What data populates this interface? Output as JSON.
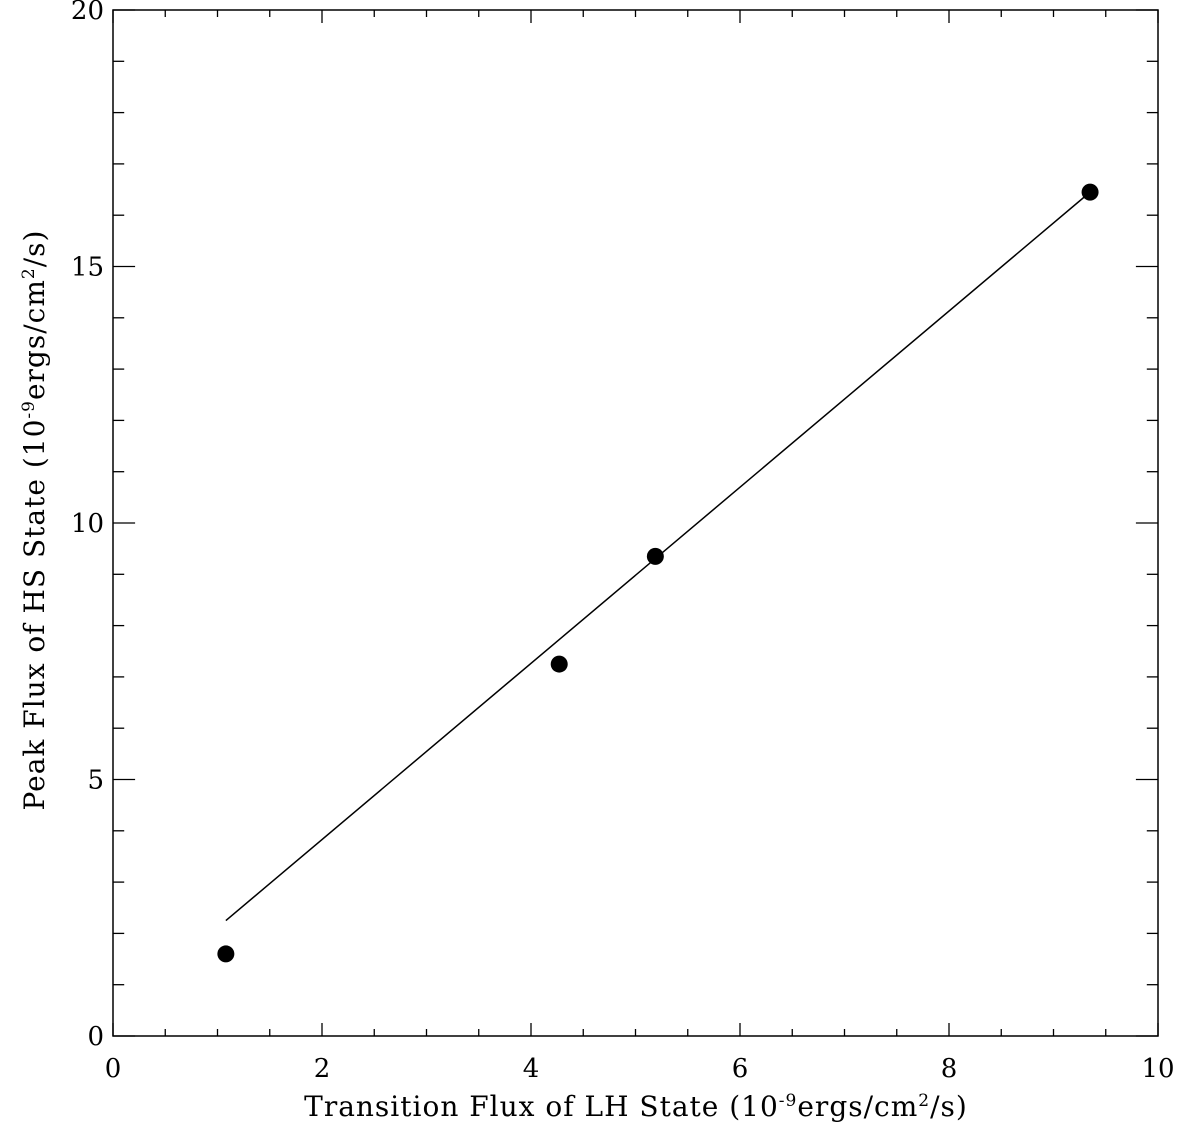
{
  "chart_data": {
    "type": "scatter",
    "title": "",
    "xlabel": {
      "prefix": "Transition Flux of LH State (10",
      "sup1": "-9",
      "middle": "ergs/cm",
      "sup2": "2",
      "suffix": "/s)"
    },
    "ylabel": {
      "prefix": "Peak Flux of HS State (10",
      "sup1": "-9",
      "middle": "ergs/cm",
      "sup2": "2",
      "suffix": "/s)"
    },
    "xlim": [
      0,
      10
    ],
    "ylim": [
      0,
      20
    ],
    "x_major_ticks": [
      0,
      2,
      4,
      6,
      8,
      10
    ],
    "y_major_ticks": [
      0,
      5,
      10,
      15,
      20
    ],
    "x_minor_step": 0.5,
    "y_minor_step": 1,
    "grid": false,
    "series": [
      {
        "marker": "filled-circle",
        "color": "#000000",
        "x": [
          1.08,
          4.27,
          5.19,
          9.35
        ],
        "y": [
          1.6,
          7.25,
          9.35,
          16.45
        ]
      }
    ],
    "fit_line": {
      "color": "#000000",
      "x": [
        1.08,
        9.35
      ],
      "y": [
        2.25,
        16.45
      ]
    }
  }
}
